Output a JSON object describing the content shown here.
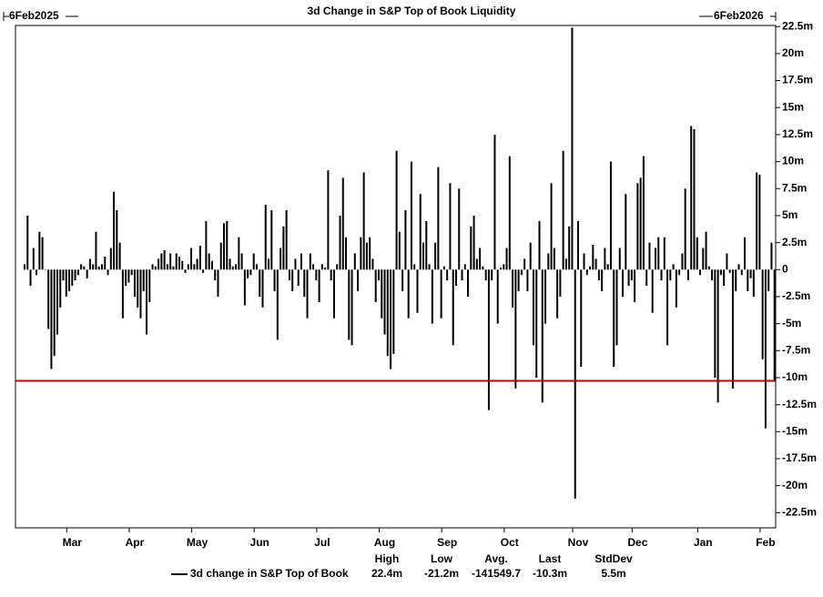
{
  "chart_data": {
    "type": "bar",
    "title": "3d Change in S&P Top of Book Liquidity",
    "start_label": "6Feb2025",
    "end_label": "6Feb2026",
    "categories": [
      null,
      null,
      null,
      null,
      null,
      null,
      null,
      null,
      null,
      null,
      null,
      null,
      null,
      null,
      null,
      null,
      "Mar",
      null,
      null,
      null,
      null,
      null,
      null,
      null,
      null,
      null,
      null,
      null,
      null,
      null,
      null,
      null,
      null,
      null,
      null,
      null,
      null,
      "Apr",
      null,
      null,
      null,
      null,
      null,
      null,
      null,
      null,
      null,
      null,
      null,
      null,
      null,
      null,
      null,
      null,
      null,
      null,
      null,
      null,
      "May",
      null,
      null,
      null,
      null,
      null,
      null,
      null,
      null,
      null,
      null,
      null,
      null,
      null,
      null,
      null,
      null,
      null,
      null,
      null,
      null,
      "Jun",
      null,
      null,
      null,
      null,
      null,
      null,
      null,
      null,
      null,
      null,
      null,
      null,
      null,
      null,
      null,
      null,
      null,
      null,
      null,
      null,
      "Jul",
      null,
      null,
      null,
      null,
      null,
      null,
      null,
      null,
      null,
      null,
      null,
      null,
      null,
      null,
      null,
      null,
      null,
      null,
      null,
      null,
      "Aug",
      null,
      null,
      null,
      null,
      null,
      null,
      null,
      null,
      null,
      null,
      null,
      null,
      null,
      null,
      null,
      null,
      null,
      null,
      null,
      null,
      "Sep",
      null,
      null,
      null,
      null,
      null,
      null,
      null,
      null,
      null,
      null,
      null,
      null,
      null,
      null,
      null,
      null,
      null,
      null,
      null,
      null,
      "Oct",
      null,
      null,
      null,
      null,
      null,
      null,
      null,
      null,
      null,
      null,
      null,
      null,
      null,
      null,
      null,
      null,
      null,
      null,
      null,
      null,
      null,
      null,
      "Nov",
      null,
      null,
      null,
      null,
      null,
      null,
      null,
      null,
      null,
      null,
      null,
      null,
      null,
      null,
      null,
      null,
      null,
      null,
      null,
      "Dec",
      null,
      null,
      null,
      null,
      null,
      null,
      null,
      null,
      null,
      null,
      null,
      null,
      null,
      null,
      null,
      null,
      null,
      null,
      null,
      null,
      null,
      "Jan",
      null,
      null,
      null,
      null,
      null,
      null,
      null,
      null,
      null,
      null,
      null,
      null,
      null,
      null,
      null,
      null,
      null,
      null,
      null,
      null,
      "Feb",
      null,
      null,
      null
    ],
    "series": [
      {
        "name": "3d change in S&P Top of Book",
        "color": "#000000",
        "values": [
          0.5,
          5,
          -1.5,
          2,
          -0.5,
          3.5,
          3,
          0,
          -5.5,
          -9.2,
          -8,
          -6,
          -3.5,
          -1,
          -2.5,
          -2,
          -1.5,
          -1,
          -0.5,
          0.5,
          0.3,
          -0.8,
          1,
          0.5,
          3.5,
          0.3,
          0.5,
          1.2,
          -0.5,
          2,
          7.2,
          5.5,
          2.5,
          -4.5,
          -1.5,
          -1.2,
          -0.5,
          -2.5,
          -3.5,
          -4.5,
          -2,
          -6,
          -3,
          0.5,
          0.3,
          1,
          1.5,
          1.8,
          0.5,
          1.5,
          0.3,
          1.5,
          1.2,
          0.8,
          -0.3,
          0.5,
          2,
          0.5,
          1,
          2.2,
          -0.3,
          4.5,
          1.5,
          0.8,
          -1,
          -2.5,
          2.5,
          4.3,
          4.5,
          1,
          0.3,
          0.5,
          3,
          1.5,
          -3.3,
          -0.8,
          -0.5,
          1.5,
          0.5,
          -2.5,
          -3.5,
          6,
          1,
          5.5,
          -2,
          -6.5,
          2,
          4,
          5.5,
          -1,
          -2,
          1,
          -1.5,
          1.5,
          -2.5,
          -4.5,
          1.5,
          0.5,
          -1,
          -3,
          0.5,
          0.2,
          9.2,
          -1,
          -4.5,
          0.5,
          5,
          8.5,
          3,
          -6.5,
          -7,
          1.5,
          -2,
          3,
          9,
          2.5,
          3,
          1,
          -3,
          -1,
          -4.5,
          -6,
          -8,
          -9.2,
          -7.8,
          11,
          3.5,
          -2,
          5.5,
          -4.5,
          10,
          0.5,
          -4,
          7,
          2.5,
          4.5,
          0.5,
          -5,
          2.5,
          9.5,
          -4.5,
          0.3,
          -1,
          8,
          -7,
          -1.5,
          7.5,
          -1,
          0.5,
          -2.5,
          4,
          5,
          1,
          2,
          0.3,
          -1,
          -13,
          -1,
          12.5,
          -5,
          0.2,
          0.5,
          2,
          10.5,
          -3.5,
          -11,
          -2,
          -0.5,
          1,
          -2,
          2.5,
          -7,
          -10,
          4.5,
          -12.3,
          -5,
          1.5,
          8,
          2,
          -4.5,
          -2.5,
          11,
          1,
          4,
          22.4,
          -21.2,
          4.5,
          -9,
          1.5,
          -0.5,
          0.3,
          2.3,
          1,
          -1,
          -2,
          2,
          0.5,
          10,
          -9,
          -7,
          2,
          -2.5,
          7,
          -1.5,
          -1,
          -3,
          8,
          8.5,
          10.5,
          -1.5,
          2.5,
          -4,
          2,
          3,
          -1,
          3,
          -7,
          -1,
          0.5,
          -3.5,
          -0.5,
          1.5,
          7.5,
          -1,
          13.3,
          13,
          3,
          -0.5,
          2,
          3.5,
          0.3,
          -1,
          -10,
          -12.3,
          -0.5,
          -1.5,
          1.5,
          -0.3,
          -11,
          -2,
          0.5,
          -0.5,
          3,
          -2,
          -0.8,
          -2.5,
          9,
          8.8,
          -8.3,
          -14.7,
          -2,
          2.5,
          -10.3
        ]
      }
    ],
    "last_line_color": "#c00000",
    "ylim": [
      -23.9,
      22.6
    ],
    "yticks": [
      {
        "value": 22.5,
        "label": "22.5m"
      },
      {
        "value": 20,
        "label": "20m"
      },
      {
        "value": 17.5,
        "label": "17.5m"
      },
      {
        "value": 15,
        "label": "15m"
      },
      {
        "value": 12.5,
        "label": "12.5m"
      },
      {
        "value": 10,
        "label": "10m"
      },
      {
        "value": 7.5,
        "label": "7.5m"
      },
      {
        "value": 5,
        "label": "5m"
      },
      {
        "value": 2.5,
        "label": "2.5m"
      },
      0,
      {
        "value": -2.5,
        "label": "-2.5m"
      },
      {
        "value": -5,
        "label": "-5m"
      },
      {
        "value": -7.5,
        "label": "-7.5m"
      },
      {
        "value": -10,
        "label": "-10m"
      },
      {
        "value": -12.5,
        "label": "-12.5m"
      },
      {
        "value": -15,
        "label": "-15m"
      },
      {
        "value": -17.5,
        "label": "-17.5m"
      },
      {
        "value": -20,
        "label": "-20m"
      },
      {
        "value": -22.5,
        "label": "-22.5m"
      }
    ],
    "stats": {
      "headers": [
        "High",
        "Low",
        "Avg.",
        "Last",
        "StdDev"
      ],
      "values": [
        "22.4m",
        "-21.2m",
        "-141549.7",
        "-10.3m",
        "5.5m"
      ]
    }
  }
}
